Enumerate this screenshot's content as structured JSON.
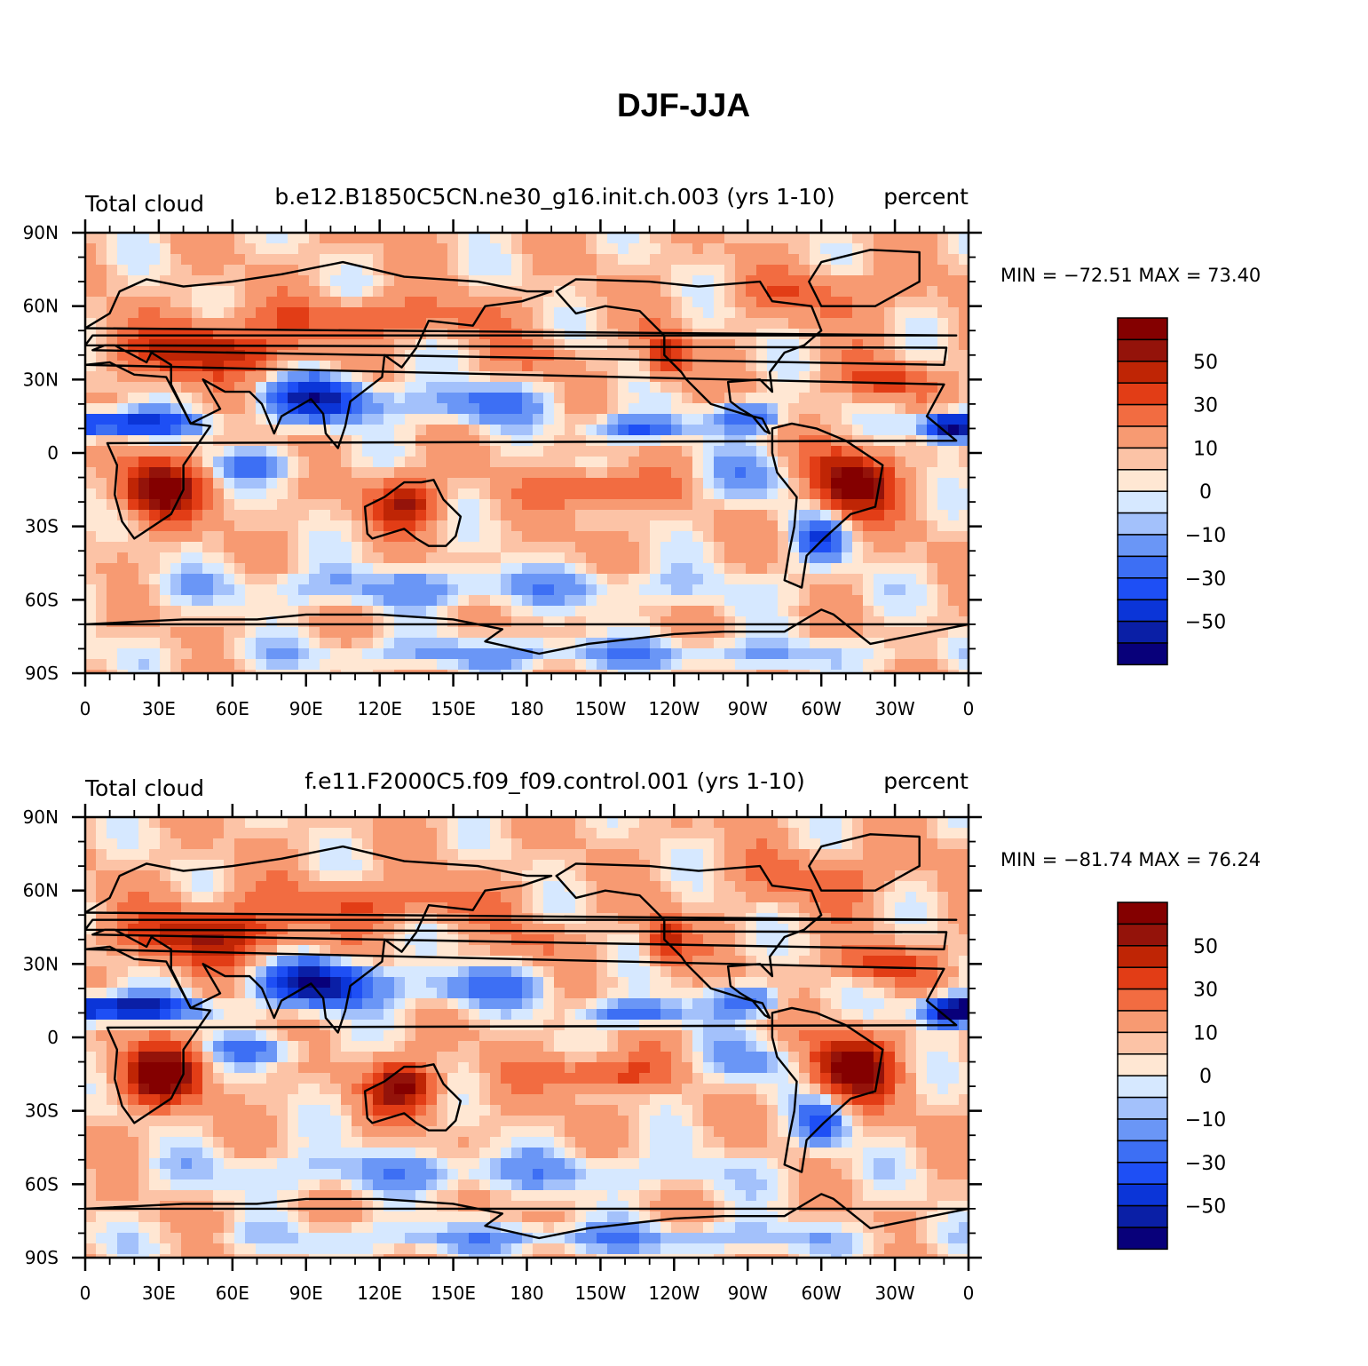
{
  "figure": {
    "title": "DJF-JJA"
  },
  "colors": {
    "background": "#ffffff",
    "palette": [
      "#08007a",
      "#0a1fa6",
      "#0b35d8",
      "#1e4ff5",
      "#3d6ff4",
      "#6a96f6",
      "#a3c1fb",
      "#d6e8ff",
      "#ffe7d3",
      "#fcc3a6",
      "#f79a72",
      "#f26c41",
      "#e23d16",
      "#bf2505",
      "#94130a",
      "#840000"
    ]
  },
  "chart_data": [
    {
      "type": "heatmap",
      "name": "top-panel",
      "case": "b.e12.B1850C5CN.ne30_g16.init.ch.003 (yrs 1-10)",
      "variable": "Total cloud",
      "units": "percent",
      "min_max_label": "MIN = −72.51  MAX =   73.40",
      "min": -72.51,
      "max": 73.4,
      "xlabel": "",
      "ylabel": "",
      "x_ticks": [
        "0",
        "30E",
        "60E",
        "90E",
        "120E",
        "150E",
        "180",
        "150W",
        "120W",
        "90W",
        "60W",
        "30W",
        "0"
      ],
      "y_ticks": [
        "90N",
        "60N",
        "30N",
        "0",
        "30S",
        "60S",
        "90S"
      ],
      "xlim": [
        0,
        360
      ],
      "ylim": [
        -90,
        90
      ],
      "colorbar": {
        "levels": [
          -70,
          -60,
          -50,
          -40,
          -30,
          -20,
          -10,
          -5,
          0,
          5,
          10,
          20,
          30,
          40,
          50,
          60,
          70
        ],
        "labels": [
          "50",
          "30",
          "10",
          "0",
          "−10",
          "−30",
          "−50"
        ]
      }
    },
    {
      "type": "heatmap",
      "name": "bottom-panel",
      "case": "f.e11.F2000C5.f09_f09.control.001 (yrs 1-10)",
      "variable": "Total cloud",
      "units": "percent",
      "min_max_label": "MIN = −81.74  MAX =   76.24",
      "min": -81.74,
      "max": 76.24,
      "xlabel": "",
      "ylabel": "",
      "x_ticks": [
        "0",
        "30E",
        "60E",
        "90E",
        "120E",
        "150E",
        "180",
        "150W",
        "120W",
        "90W",
        "60W",
        "30W",
        "0"
      ],
      "y_ticks": [
        "90N",
        "60N",
        "30N",
        "0",
        "30S",
        "60S",
        "90S"
      ],
      "xlim": [
        0,
        360
      ],
      "ylim": [
        -90,
        90
      ],
      "colorbar": {
        "levels": [
          -70,
          -60,
          -50,
          -40,
          -30,
          -20,
          -10,
          -5,
          0,
          5,
          10,
          20,
          30,
          40,
          50,
          60,
          70
        ],
        "labels": [
          "50",
          "30",
          "10",
          "0",
          "−10",
          "−30",
          "−50"
        ]
      }
    }
  ]
}
